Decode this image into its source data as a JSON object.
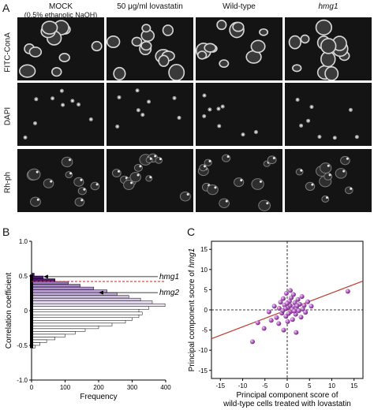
{
  "panelA": {
    "columns": [
      {
        "label": "MOCK",
        "sublabel": "(0.5% ethanolic NaOH)",
        "italic": false
      },
      {
        "label": "50 μg/ml lovastatin",
        "sublabel": "",
        "italic": false
      },
      {
        "label": "Wild-type",
        "sublabel": "",
        "italic": false
      },
      {
        "label": "hmg1",
        "sublabel": "",
        "italic": true
      }
    ],
    "rows": [
      "FITC-ConA",
      "DAPI",
      "Rh-ph"
    ]
  },
  "panel_letters": {
    "b": "B",
    "c": "C"
  },
  "chart_data": [
    {
      "type": "bar",
      "orientation": "horizontal",
      "xlabel": "Frequency",
      "ylabel": "Correlation coefficient",
      "xlim": [
        0,
        400
      ],
      "ylim": [
        -1.0,
        1.0
      ],
      "xticks": [
        "0",
        "100",
        "200",
        "300",
        "400"
      ],
      "yticks": [
        "-1.0",
        "-0.5",
        "0",
        "0.5",
        "1.0"
      ],
      "threshold_y": 0.42,
      "bins_center": [
        0.52,
        0.48,
        0.44,
        0.4,
        0.36,
        0.32,
        0.28,
        0.24,
        0.2,
        0.16,
        0.12,
        0.08,
        0.04,
        0.0,
        -0.04,
        -0.08,
        -0.12,
        -0.16,
        -0.2,
        -0.24,
        -0.28,
        -0.32,
        -0.36,
        -0.4,
        -0.44,
        -0.48,
        -0.52
      ],
      "values": [
        8,
        35,
        70,
        110,
        145,
        185,
        225,
        255,
        290,
        325,
        360,
        398,
        350,
        320,
        330,
        320,
        300,
        280,
        240,
        200,
        160,
        130,
        100,
        70,
        45,
        25,
        10
      ],
      "annotations": [
        {
          "text": "hmg1",
          "y": 0.49
        },
        {
          "text": "hmg2",
          "y": 0.26
        }
      ]
    },
    {
      "type": "scatter",
      "xlabel": [
        "Principal component score of",
        "wild-type cells treated with lovastatin"
      ],
      "ylabel_prefix": "Principal component socre of ",
      "ylabel_italic": "hmg1",
      "xlim": [
        -17,
        17
      ],
      "ylim": [
        -17,
        17
      ],
      "xticks": [
        "-15",
        "-10",
        "-5",
        "0",
        "5",
        "10",
        "15"
      ],
      "yticks": [
        "-15",
        "-10",
        "-5",
        "0",
        "5",
        "10",
        "15"
      ],
      "fit_line": {
        "slope": 0.42,
        "intercept": 0.0
      },
      "points": [
        [
          0.2,
          0.6
        ],
        [
          0.8,
          -0.4
        ],
        [
          1.5,
          0.9
        ],
        [
          -0.6,
          1.2
        ],
        [
          2.1,
          0.3
        ],
        [
          -1.2,
          -0.8
        ],
        [
          0.5,
          2.1
        ],
        [
          1.9,
          -1.1
        ],
        [
          -0.3,
          -1.6
        ],
        [
          2.8,
          1.4
        ],
        [
          3.5,
          0.2
        ],
        [
          -1.8,
          0.4
        ],
        [
          0.9,
          3.0
        ],
        [
          1.2,
          -2.4
        ],
        [
          -2.4,
          -1.9
        ],
        [
          2.4,
          2.6
        ],
        [
          4.1,
          -0.6
        ],
        [
          -0.9,
          2.8
        ],
        [
          1.7,
          1.8
        ],
        [
          0.1,
          -2.9
        ],
        [
          3.1,
          -1.8
        ],
        [
          -1.5,
          1.9
        ],
        [
          2.6,
          -0.2
        ],
        [
          0.6,
          1.1
        ],
        [
          -2.9,
          0.9
        ],
        [
          3.8,
          1.1
        ],
        [
          1.1,
          0.1
        ],
        [
          -0.4,
          0.3
        ],
        [
          0.3,
          -0.9
        ],
        [
          1.6,
          -0.3
        ],
        [
          2.2,
          1.0
        ],
        [
          -1.0,
          -0.2
        ],
        [
          0.7,
          4.8
        ],
        [
          -0.2,
          4.1
        ],
        [
          1.4,
          3.8
        ],
        [
          -5.2,
          -4.6
        ],
        [
          -7.8,
          -7.9
        ],
        [
          -6.6,
          -3.2
        ],
        [
          -3.6,
          -2.6
        ],
        [
          2.0,
          -5.6
        ],
        [
          -0.8,
          -5.0
        ],
        [
          5.4,
          0.9
        ],
        [
          3.3,
          3.3
        ],
        [
          0.0,
          1.6
        ],
        [
          -1.9,
          -3.4
        ],
        [
          13.6,
          4.6
        ],
        [
          4.6,
          2.0
        ],
        [
          -4.1,
          -0.5
        ]
      ]
    }
  ]
}
